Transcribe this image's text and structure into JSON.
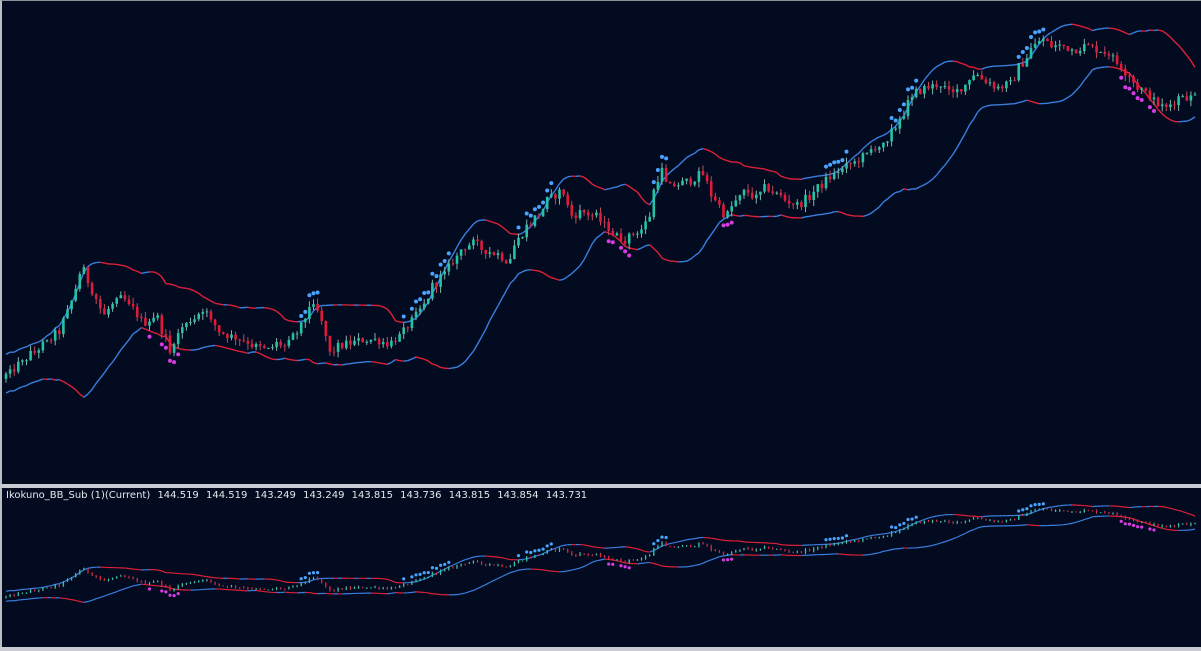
{
  "colors": {
    "background": "#020b1f",
    "bull": "#26c2a6",
    "bear": "#e01a3a",
    "wick_bull": "#7fb5a8",
    "wick_bear": "#c24a5a",
    "band_up_color": "#3b7fe0",
    "band_down_color": "#e0203a",
    "dot_high": "#4aa3ff",
    "dot_low": "#d63de0"
  },
  "subwindow": {
    "indicator_name": "Ikokuno_BB_Sub (1)(Current)",
    "values": [
      "144.519",
      "144.519",
      "143.249",
      "143.249",
      "143.815",
      "143.736",
      "143.815",
      "143.854",
      "143.731"
    ]
  },
  "chart_data": [
    {
      "type": "candlestick",
      "pane": "main",
      "ylim": [
        139.6,
        146.6
      ],
      "anchors_x": [
        0,
        10,
        22,
        34,
        48,
        60,
        70,
        78,
        84,
        90,
        98,
        106,
        114,
        124,
        134,
        146,
        158,
        166,
        172,
        178,
        186,
        194,
        206,
        214,
        224,
        234,
        246,
        258,
        270,
        280,
        288,
        296,
        304,
        312,
        320,
        328,
        332,
        340,
        352,
        366,
        378,
        390,
        402,
        410,
        418,
        426,
        436,
        446,
        456,
        466,
        476,
        486,
        498,
        510,
        520,
        530,
        540,
        552,
        564,
        574,
        584,
        596,
        608,
        618,
        628,
        636,
        644,
        652,
        658,
        664,
        670,
        680,
        692,
        704,
        716,
        728,
        738,
        748,
        758,
        768,
        780,
        790,
        800,
        810,
        820,
        832,
        842,
        854,
        866,
        878,
        888,
        896,
        904,
        912,
        920,
        930,
        942,
        954,
        964,
        976,
        988,
        1000,
        1012,
        1024,
        1036,
        1044,
        1054,
        1064,
        1076,
        1088,
        1100,
        1110,
        1120,
        1130,
        1140,
        1150,
        1160,
        1168,
        1176,
        1184,
        1192,
        1200
      ],
      "anchors_y": [
        141.1,
        141.2,
        141.35,
        141.5,
        141.65,
        141.8,
        142.1,
        142.45,
        142.75,
        142.55,
        142.3,
        142.05,
        142.2,
        142.3,
        142.15,
        141.95,
        142.05,
        141.8,
        141.5,
        141.75,
        141.9,
        142.0,
        142.15,
        141.95,
        141.8,
        141.75,
        141.7,
        141.6,
        141.55,
        141.65,
        141.6,
        141.75,
        141.9,
        142.2,
        142.1,
        141.75,
        141.5,
        141.6,
        141.65,
        141.7,
        141.7,
        141.65,
        141.75,
        141.9,
        142.05,
        142.2,
        142.5,
        142.65,
        142.85,
        143.05,
        143.1,
        143.0,
        142.95,
        142.85,
        143.15,
        143.35,
        143.5,
        143.75,
        143.85,
        143.5,
        143.55,
        143.5,
        143.35,
        143.2,
        143.15,
        143.25,
        143.3,
        143.5,
        144.0,
        144.15,
        143.9,
        143.95,
        144.0,
        144.1,
        143.75,
        143.5,
        143.7,
        143.85,
        143.75,
        143.9,
        143.8,
        143.7,
        143.65,
        143.75,
        143.9,
        144.05,
        144.15,
        144.25,
        144.35,
        144.5,
        144.5,
        144.75,
        144.95,
        145.15,
        145.3,
        145.35,
        145.4,
        145.25,
        145.35,
        145.55,
        145.45,
        145.35,
        145.4,
        145.7,
        145.95,
        146.05,
        145.95,
        145.95,
        145.9,
        145.95,
        145.9,
        145.85,
        145.7,
        145.55,
        145.35,
        145.25,
        145.1,
        145.05,
        145.15,
        145.25,
        145.2,
        145.25
      ]
    },
    {
      "type": "candlestick",
      "pane": "sub",
      "ylim": [
        138.4,
        147.2
      ]
    }
  ]
}
